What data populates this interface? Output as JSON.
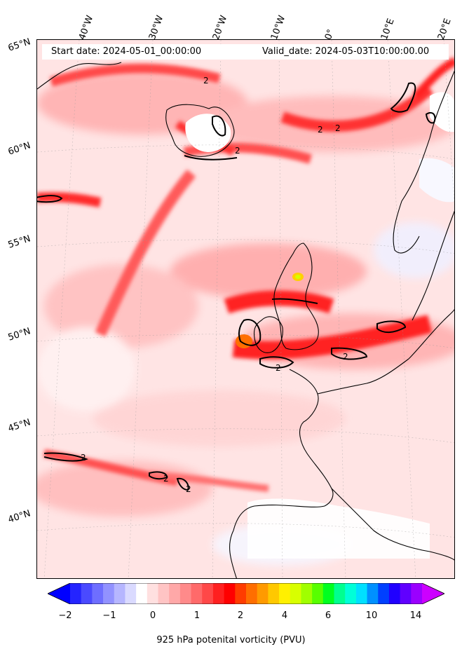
{
  "header": {
    "start_date": "Start date: 2024-05-01_00:00:00",
    "valid_date": "Valid_date: 2024-05-03T10:00:00.00"
  },
  "longitude_labels": [
    "40°W",
    "30°W",
    "20°W",
    "10°W",
    "0°",
    "10°E",
    "20°E"
  ],
  "latitude_labels": [
    "65°N",
    "60°N",
    "55°N",
    "50°N",
    "45°N",
    "40°N"
  ],
  "contour_label": "2",
  "colorbar": {
    "title": "925 hPa potenital vorticity (PVU)",
    "tick_labels": [
      "−2",
      "−1",
      "0",
      "1",
      "2",
      "4",
      "6",
      "10",
      "14"
    ],
    "colors": [
      "#0000ff",
      "#2424ff",
      "#4a4aff",
      "#6e6eff",
      "#9292ff",
      "#b6b6ff",
      "#dadaff",
      "#ffffff",
      "#ffe0e0",
      "#ffc4c4",
      "#ffa8a8",
      "#ff8a8a",
      "#ff6a6a",
      "#ff4848",
      "#ff2020",
      "#ff0000",
      "#ff3c00",
      "#ff6e00",
      "#ff9a00",
      "#ffc800",
      "#fff000",
      "#d8ff00",
      "#a0ff00",
      "#58ff00",
      "#00ff20",
      "#00ff90",
      "#00ffd8",
      "#00e0ff",
      "#0090ff",
      "#0040ff",
      "#2000ff",
      "#6000ff",
      "#9a00ff",
      "#cc00ff"
    ]
  }
}
